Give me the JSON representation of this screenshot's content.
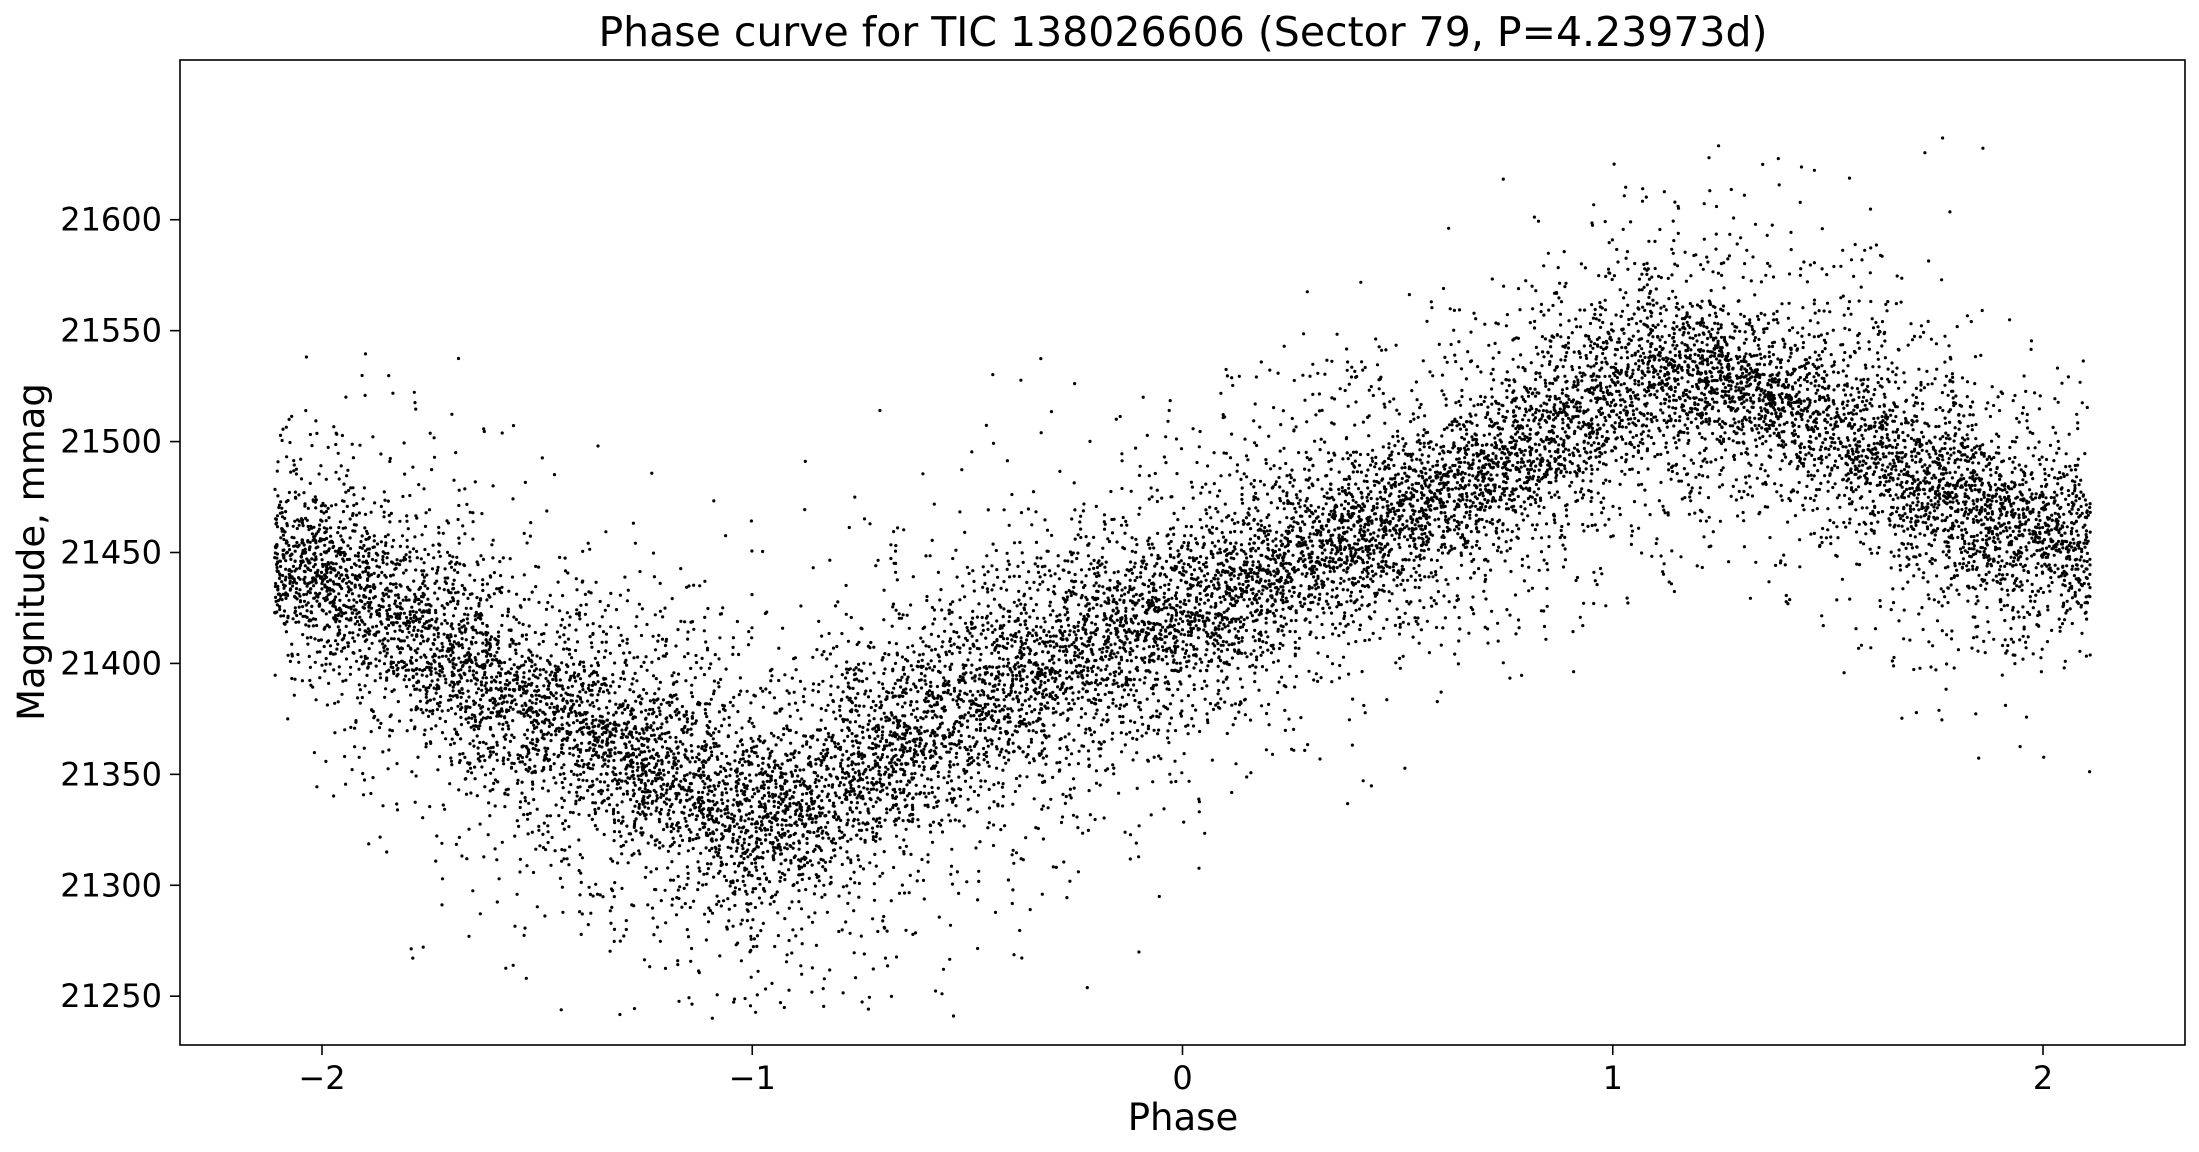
{
  "chart_data": {
    "type": "scatter",
    "title": "Phase curve for TIC 138026606 (Sector 79, P=4.23973d)",
    "xlabel": "Phase",
    "ylabel": "Magnitude, mmag",
    "xlim": [
      -2.33,
      2.33
    ],
    "ylim": [
      21228,
      21672
    ],
    "x_ticks": [
      -2,
      -1,
      0,
      1,
      2
    ],
    "x_tick_labels": [
      "−2",
      "−1",
      "0",
      "1",
      "2"
    ],
    "y_ticks": [
      21250,
      21300,
      21350,
      21400,
      21450,
      21500,
      21550,
      21600
    ],
    "y_tick_labels": [
      "21250",
      "21300",
      "21350",
      "21400",
      "21450",
      "21500",
      "21550",
      "21600"
    ],
    "grid": false,
    "legend": "none",
    "marker_color": "#000000",
    "series": [
      {
        "phase_range": [
          -2.11,
          2.11
        ],
        "trend": {
          "phase": [
            -2.1,
            -1.9,
            -1.7,
            -1.5,
            -1.3,
            -1.1,
            -1.0,
            -0.9,
            -0.7,
            -0.5,
            -0.3,
            -0.1,
            0.1,
            0.3,
            0.5,
            0.7,
            0.9,
            1.1,
            1.3,
            1.5,
            1.7,
            1.9,
            2.1
          ],
          "magnitude": [
            21450,
            21430,
            21405,
            21380,
            21362,
            21340,
            21330,
            21335,
            21360,
            21382,
            21400,
            21415,
            21430,
            21450,
            21468,
            21485,
            21510,
            21530,
            21525,
            21510,
            21485,
            21465,
            21450
          ],
          "scatter_sigma": [
            25,
            38,
            38,
            35,
            35,
            38,
            38,
            38,
            38,
            38,
            38,
            35,
            32,
            32,
            30,
            32,
            35,
            32,
            30,
            32,
            35,
            32,
            28
          ]
        },
        "approx_point_count": 15000
      }
    ]
  }
}
